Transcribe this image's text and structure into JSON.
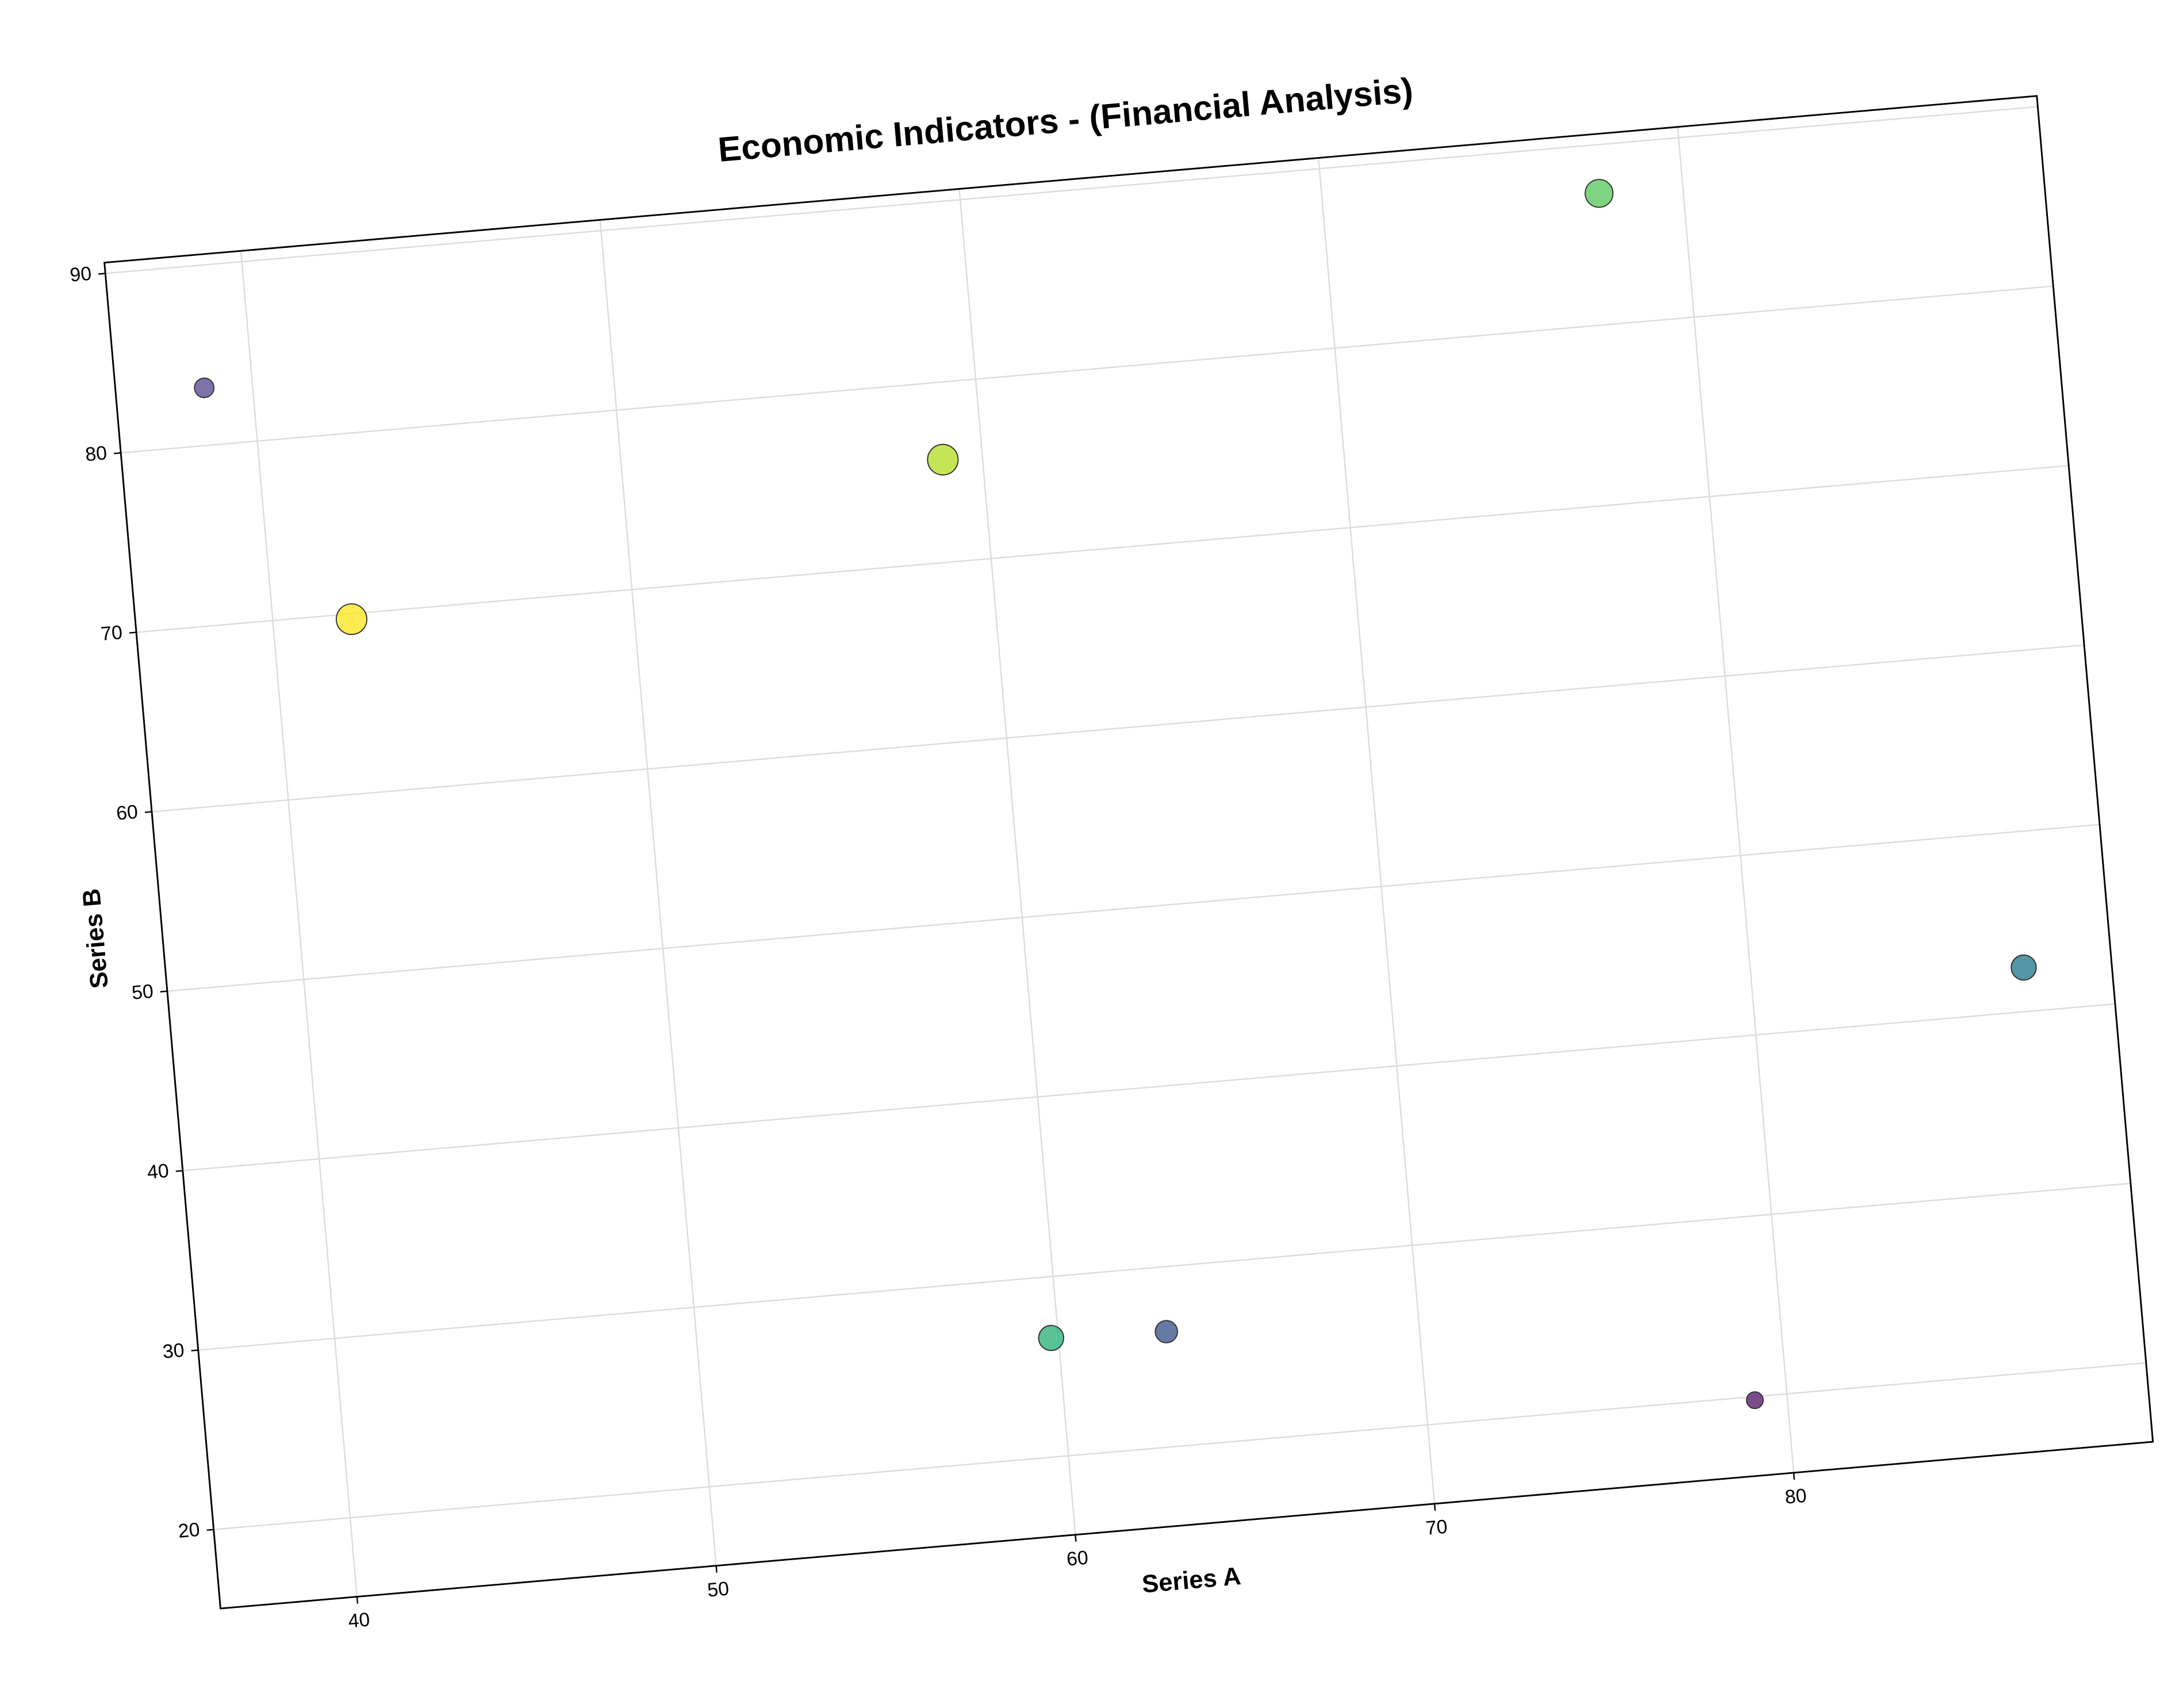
{
  "chart_data": {
    "type": "scatter",
    "title": "Economic Indicators - (Financial Analysis)",
    "x_label": "Series A",
    "y_label": "Series B",
    "x": [
      38.66,
      42.18,
      58.9,
      77.67,
      87.56,
      59.8,
      63.0,
      79.1
    ],
    "values": [
      83.2,
      69.7,
      75.7,
      87.3,
      42.45,
      26.6,
      26.4,
      19.8
    ],
    "sizes": [
      7,
      11,
      11,
      10,
      9,
      9,
      8,
      6
    ],
    "colors": [
      "#5e4f94",
      "#fde725",
      "#b5de2b",
      "#5ec962",
      "#2a7b8e",
      "#2fb47c",
      "#3e5a8c",
      "#5b1f6e"
    ],
    "xlim": [
      36.2,
      90.0
    ],
    "ylim": [
      15.6,
      90.6
    ],
    "xticks": [
      40,
      50,
      60,
      70,
      80
    ],
    "yticks": [
      20,
      30,
      40,
      50,
      60,
      70,
      80,
      90
    ],
    "grid": true
  }
}
